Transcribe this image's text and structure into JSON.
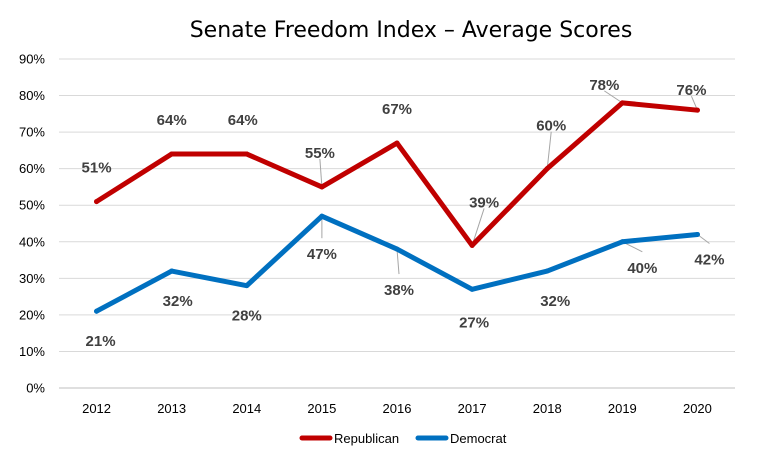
{
  "chart_data": {
    "type": "line",
    "title": "Senate Freedom Index – Average Scores",
    "xlabel": "",
    "ylabel": "",
    "categories": [
      "2012",
      "2013",
      "2014",
      "2015",
      "2016",
      "2017",
      "2018",
      "2019",
      "2020"
    ],
    "ylim": [
      0,
      90
    ],
    "y_ticks": [
      "0%",
      "10%",
      "20%",
      "30%",
      "40%",
      "50%",
      "60%",
      "70%",
      "80%",
      "90%"
    ],
    "grid": true,
    "legend_position": "bottom",
    "series": [
      {
        "name": "Republican",
        "color": "#c00000",
        "values": [
          51,
          64,
          64,
          55,
          67,
          39,
          60,
          78,
          76
        ],
        "labels": [
          "51%",
          "64%",
          "64%",
          "55%",
          "67%",
          "39%",
          "60%",
          "78%",
          "76%"
        ]
      },
      {
        "name": "Democrat",
        "color": "#0070c0",
        "values": [
          21,
          32,
          28,
          47,
          38,
          27,
          32,
          40,
          42
        ],
        "labels": [
          "21%",
          "32%",
          "28%",
          "47%",
          "38%",
          "27%",
          "32%",
          "40%",
          "42%"
        ]
      }
    ]
  }
}
